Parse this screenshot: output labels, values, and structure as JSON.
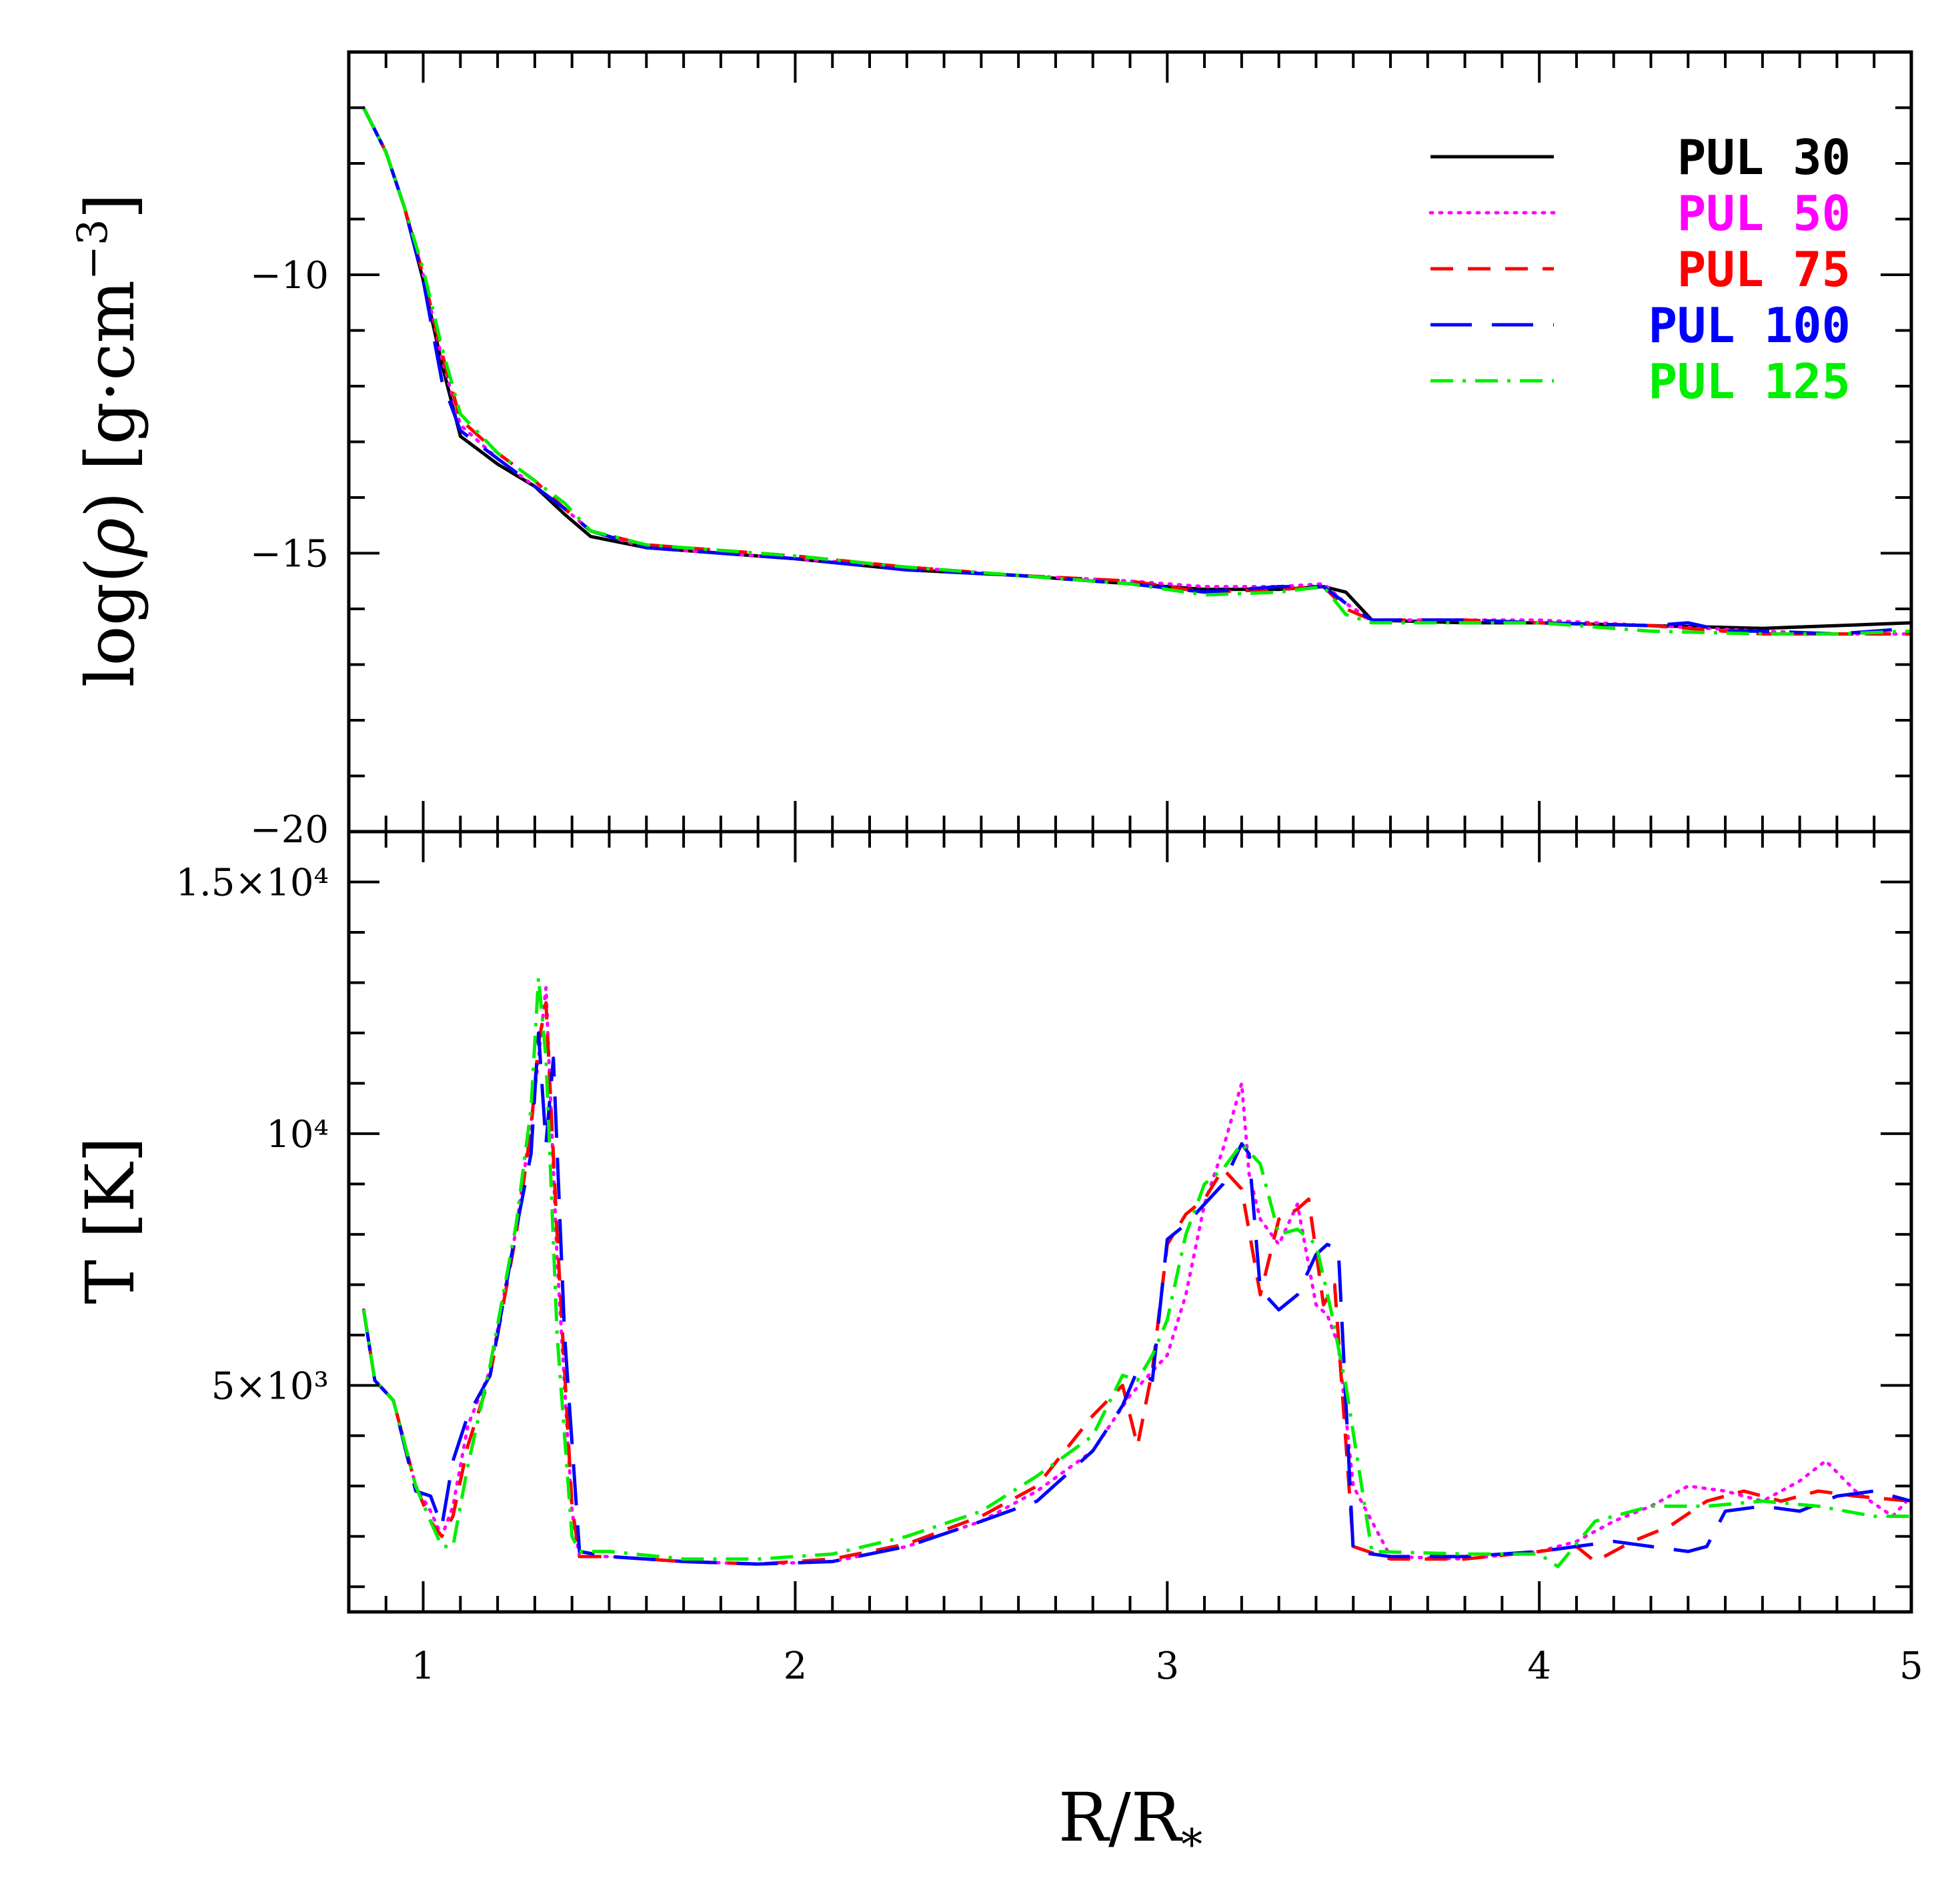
{
  "chart_data": [
    {
      "type": "line",
      "panel": "top",
      "ylabel_parts": [
        "log(",
        "ρ",
        ")  [g·cm",
        "−3",
        "]"
      ],
      "xlim": [
        0.8,
        5.0
      ],
      "ylim": [
        -20,
        -6
      ],
      "y_ticks": [
        -10,
        -15,
        -20
      ],
      "y_tick_labels": [
        "−10",
        "−15",
        "−20"
      ],
      "legend_position": "top-right",
      "series": [
        {
          "name": "PUL  30",
          "color": "#000000",
          "dash": "solid",
          "x": [
            0.84,
            0.9,
            0.95,
            1.0,
            1.05,
            1.1,
            1.2,
            1.3,
            1.38,
            1.45,
            1.6,
            1.8,
            2.0,
            2.3,
            2.6,
            2.9,
            3.1,
            3.3,
            3.42,
            3.48,
            3.55,
            3.8,
            4.0,
            4.3,
            4.6,
            4.8,
            5.0
          ],
          "y": [
            -7.0,
            -7.8,
            -8.8,
            -10.1,
            -11.6,
            -12.9,
            -13.4,
            -13.8,
            -14.3,
            -14.7,
            -14.9,
            -15.0,
            -15.1,
            -15.3,
            -15.4,
            -15.55,
            -15.65,
            -15.65,
            -15.6,
            -15.7,
            -16.2,
            -16.25,
            -16.25,
            -16.3,
            -16.35,
            -16.3,
            -16.25
          ]
        },
        {
          "name": "PUL  50",
          "color": "#ff00ff",
          "dash": "dotted",
          "x": [
            0.84,
            0.9,
            0.95,
            1.0,
            1.05,
            1.1,
            1.2,
            1.3,
            1.38,
            1.45,
            1.6,
            1.8,
            2.0,
            2.3,
            2.6,
            2.9,
            3.1,
            3.3,
            3.42,
            3.48,
            3.55,
            3.8,
            4.0,
            4.3,
            4.6,
            4.8,
            5.0
          ],
          "y": [
            -7.0,
            -7.8,
            -8.8,
            -10.0,
            -11.5,
            -12.7,
            -13.3,
            -13.8,
            -14.2,
            -14.6,
            -14.9,
            -15.0,
            -15.1,
            -15.25,
            -15.4,
            -15.5,
            -15.6,
            -15.6,
            -15.55,
            -15.9,
            -16.2,
            -16.2,
            -16.2,
            -16.3,
            -16.4,
            -16.45,
            -16.45
          ]
        },
        {
          "name": "PUL  75",
          "color": "#ff0000",
          "dash": "dashed",
          "x": [
            0.84,
            0.9,
            0.95,
            1.0,
            1.05,
            1.1,
            1.2,
            1.3,
            1.38,
            1.45,
            1.6,
            1.8,
            2.0,
            2.3,
            2.6,
            2.9,
            3.1,
            3.3,
            3.42,
            3.48,
            3.55,
            3.8,
            4.0,
            4.3,
            4.6,
            4.8,
            5.0
          ],
          "y": [
            -7.0,
            -7.8,
            -8.8,
            -10.0,
            -11.4,
            -12.6,
            -13.2,
            -13.7,
            -14.2,
            -14.6,
            -14.85,
            -14.95,
            -15.05,
            -15.25,
            -15.4,
            -15.5,
            -15.7,
            -15.65,
            -15.6,
            -16.0,
            -16.2,
            -16.2,
            -16.25,
            -16.3,
            -16.45,
            -16.45,
            -16.45
          ]
        },
        {
          "name": "PUL 100",
          "color": "#0000ff",
          "dash": "longdash",
          "x": [
            0.84,
            0.9,
            0.95,
            1.0,
            1.05,
            1.1,
            1.2,
            1.3,
            1.38,
            1.45,
            1.6,
            1.8,
            2.0,
            2.3,
            2.6,
            2.9,
            3.1,
            3.3,
            3.42,
            3.48,
            3.55,
            3.8,
            4.0,
            4.3,
            4.4,
            4.5,
            4.6,
            4.8,
            5.0
          ],
          "y": [
            -7.0,
            -7.8,
            -8.8,
            -10.1,
            -11.9,
            -12.8,
            -13.3,
            -13.8,
            -14.2,
            -14.6,
            -14.9,
            -15.0,
            -15.1,
            -15.3,
            -15.4,
            -15.55,
            -15.7,
            -15.6,
            -15.6,
            -15.9,
            -16.2,
            -16.2,
            -16.25,
            -16.3,
            -16.25,
            -16.4,
            -16.4,
            -16.45,
            -16.35
          ]
        },
        {
          "name": "PUL 125",
          "color": "#00ee00",
          "dash": "dotdash",
          "x": [
            0.84,
            0.9,
            0.95,
            1.0,
            1.05,
            1.1,
            1.2,
            1.3,
            1.38,
            1.45,
            1.6,
            1.8,
            2.0,
            2.3,
            2.6,
            2.9,
            3.1,
            3.3,
            3.42,
            3.48,
            3.55,
            3.8,
            4.0,
            4.3,
            4.6,
            4.8,
            5.0
          ],
          "y": [
            -7.0,
            -7.8,
            -8.8,
            -9.9,
            -11.3,
            -12.5,
            -13.2,
            -13.7,
            -14.1,
            -14.6,
            -14.85,
            -14.95,
            -15.05,
            -15.25,
            -15.4,
            -15.55,
            -15.75,
            -15.7,
            -15.6,
            -16.1,
            -16.25,
            -16.25,
            -16.25,
            -16.4,
            -16.45,
            -16.45,
            -16.4
          ]
        }
      ]
    },
    {
      "type": "line",
      "panel": "bottom",
      "ylabel": "T  [K]",
      "xlabel_parts": [
        "R/R",
        "*"
      ],
      "xlim": [
        0.8,
        5.0
      ],
      "ylim": [
        500,
        16000
      ],
      "x_ticks": [
        1,
        2,
        3,
        4,
        5
      ],
      "x_tick_labels": [
        "1",
        "2",
        "3",
        "4",
        "5"
      ],
      "y_ticks": [
        5000,
        10000,
        15000
      ],
      "y_tick_labels": [
        "5×10³",
        "10⁴",
        "1.5×10⁴"
      ],
      "series": [
        {
          "name": "PUL  30",
          "color": "#000000",
          "dash": "solid",
          "x": [],
          "y": []
        },
        {
          "name": "PUL  50",
          "color": "#ff00ff",
          "dash": "dotted",
          "x": [
            0.84,
            0.87,
            0.92,
            0.98,
            1.02,
            1.05,
            1.08,
            1.12,
            1.18,
            1.25,
            1.29,
            1.31,
            1.33,
            1.36,
            1.4,
            1.42,
            1.5,
            1.7,
            1.9,
            2.1,
            2.3,
            2.5,
            2.65,
            2.8,
            2.9,
            2.95,
            3.0,
            3.05,
            3.1,
            3.15,
            3.2,
            3.22,
            3.25,
            3.3,
            3.35,
            3.4,
            3.43,
            3.46,
            3.5,
            3.6,
            3.8,
            4.0,
            4.1,
            4.2,
            4.3,
            4.4,
            4.5,
            4.6,
            4.7,
            4.77,
            4.85,
            4.95,
            5.0
          ],
          "y": [
            6500,
            5100,
            4700,
            3000,
            2500,
            2000,
            2600,
            4200,
            5300,
            8100,
            10200,
            11500,
            12900,
            7500,
            2500,
            1600,
            1600,
            1500,
            1450,
            1500,
            1800,
            2300,
            2900,
            3700,
            4800,
            5200,
            5600,
            6800,
            8600,
            9700,
            11000,
            9200,
            8300,
            7800,
            8600,
            6600,
            6400,
            5800,
            3000,
            1600,
            1550,
            1700,
            1900,
            2300,
            2600,
            3000,
            2900,
            2700,
            3100,
            3500,
            2900,
            2400,
            2800
          ]
        },
        {
          "name": "PUL  75",
          "color": "#ff0000",
          "dash": "dashed",
          "x": [
            0.84,
            0.87,
            0.92,
            0.98,
            1.02,
            1.05,
            1.08,
            1.12,
            1.18,
            1.25,
            1.29,
            1.31,
            1.33,
            1.36,
            1.4,
            1.42,
            1.5,
            1.7,
            1.9,
            2.1,
            2.3,
            2.5,
            2.65,
            2.8,
            2.88,
            2.92,
            2.96,
            3.0,
            3.05,
            3.1,
            3.15,
            3.2,
            3.25,
            3.3,
            3.35,
            3.38,
            3.42,
            3.45,
            3.5,
            3.6,
            3.8,
            4.0,
            4.1,
            4.15,
            4.25,
            4.35,
            4.45,
            4.55,
            4.65,
            4.75,
            4.85,
            5.0
          ],
          "y": [
            6500,
            5100,
            4700,
            3000,
            2300,
            2000,
            2400,
            3800,
            5200,
            8000,
            10100,
            11800,
            12600,
            8000,
            2600,
            1600,
            1600,
            1500,
            1450,
            1550,
            1850,
            2400,
            3000,
            4400,
            5000,
            3800,
            5300,
            7800,
            8400,
            8700,
            9300,
            8900,
            6800,
            8300,
            8500,
            8700,
            6600,
            7000,
            1800,
            1550,
            1550,
            1700,
            1800,
            1500,
            1900,
            2200,
            2700,
            2900,
            2700,
            2900,
            2800,
            2700
          ]
        },
        {
          "name": "PUL 100",
          "color": "#0000ff",
          "dash": "longdash",
          "x": [
            0.84,
            0.87,
            0.92,
            0.98,
            1.02,
            1.05,
            1.08,
            1.12,
            1.18,
            1.25,
            1.29,
            1.31,
            1.33,
            1.35,
            1.38,
            1.42,
            1.5,
            1.7,
            1.9,
            2.1,
            2.3,
            2.5,
            2.65,
            2.8,
            2.88,
            2.92,
            2.96,
            3.0,
            3.05,
            3.1,
            3.15,
            3.2,
            3.22,
            3.25,
            3.3,
            3.35,
            3.4,
            3.43,
            3.46,
            3.5,
            3.6,
            3.8,
            4.0,
            4.1,
            4.2,
            4.3,
            4.4,
            4.45,
            4.5,
            4.6,
            4.7,
            4.8,
            4.9,
            5.0
          ],
          "y": [
            6500,
            5100,
            4700,
            2900,
            2800,
            2200,
            3500,
            4400,
            5200,
            8100,
            9600,
            12000,
            9800,
            11500,
            6000,
            1700,
            1600,
            1500,
            1450,
            1500,
            1800,
            2300,
            2700,
            3700,
            4600,
            5300,
            5100,
            7900,
            8200,
            8600,
            9000,
            9800,
            9600,
            6900,
            6500,
            6800,
            7600,
            7800,
            7700,
            1700,
            1600,
            1600,
            1700,
            1800,
            1900,
            1800,
            1700,
            1800,
            2500,
            2600,
            2500,
            2800,
            2900,
            2700
          ]
        },
        {
          "name": "PUL 125",
          "color": "#00ee00",
          "dash": "dotdash",
          "x": [
            0.84,
            0.87,
            0.92,
            0.98,
            1.02,
            1.05,
            1.08,
            1.12,
            1.18,
            1.25,
            1.29,
            1.31,
            1.33,
            1.36,
            1.4,
            1.42,
            1.5,
            1.7,
            1.9,
            2.1,
            2.3,
            2.5,
            2.65,
            2.8,
            2.88,
            2.92,
            2.96,
            3.0,
            3.05,
            3.1,
            3.15,
            3.2,
            3.25,
            3.3,
            3.35,
            3.4,
            3.44,
            3.48,
            3.55,
            3.8,
            4.0,
            4.05,
            4.15,
            4.3,
            4.45,
            4.6,
            4.75,
            4.9,
            5.0
          ],
          "y": [
            6500,
            5100,
            4700,
            3000,
            2300,
            1800,
            1800,
            3400,
            5400,
            8200,
            10500,
            13100,
            11500,
            6000,
            2000,
            1700,
            1700,
            1550,
            1550,
            1650,
            2000,
            2500,
            3200,
            4000,
            5200,
            5100,
            5600,
            6300,
            8000,
            9000,
            9300,
            9800,
            9400,
            8000,
            8100,
            7800,
            6500,
            5000,
            1700,
            1650,
            1650,
            1400,
            2300,
            2600,
            2600,
            2700,
            2600,
            2400,
            2400
          ]
        }
      ]
    }
  ]
}
